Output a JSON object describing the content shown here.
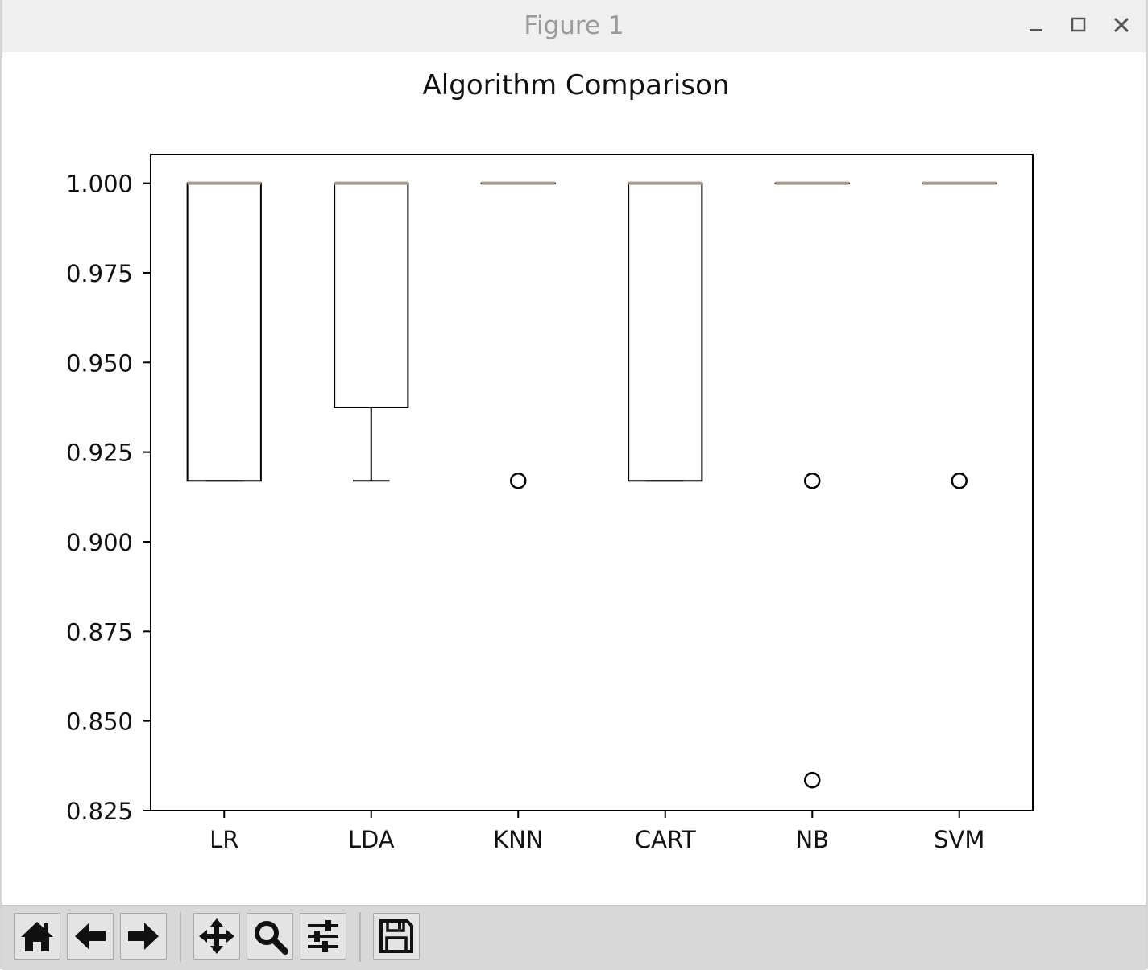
{
  "window": {
    "title": "Figure 1",
    "controls": [
      "minimize-icon",
      "maximize-icon",
      "close-icon"
    ]
  },
  "toolbar": {
    "buttons": [
      {
        "name": "home",
        "icon": "home-icon"
      },
      {
        "name": "back",
        "icon": "arrow-left-icon"
      },
      {
        "name": "forward",
        "icon": "arrow-right-icon"
      },
      {
        "name": "pan",
        "icon": "move-icon"
      },
      {
        "name": "zoom",
        "icon": "magnifier-icon"
      },
      {
        "name": "configure-subplots",
        "icon": "sliders-icon"
      },
      {
        "name": "save",
        "icon": "floppy-disk-icon"
      }
    ]
  },
  "chart_data": {
    "type": "box",
    "title": "Algorithm Comparison",
    "xlabel": "",
    "ylabel": "",
    "categories": [
      "LR",
      "LDA",
      "KNN",
      "CART",
      "NB",
      "SVM"
    ],
    "ylim": [
      0.825,
      1.008
    ],
    "yticks": [
      "0.825",
      "0.850",
      "0.875",
      "0.900",
      "0.925",
      "0.950",
      "0.975",
      "1.000"
    ],
    "boxes": [
      {
        "label": "LR",
        "whislo": 0.917,
        "q1": 0.917,
        "med": 1.0,
        "q3": 1.0,
        "whishi": 1.0,
        "fliers": []
      },
      {
        "label": "LDA",
        "whislo": 0.917,
        "q1": 0.9375,
        "med": 1.0,
        "q3": 1.0,
        "whishi": 1.0,
        "fliers": []
      },
      {
        "label": "KNN",
        "whislo": 1.0,
        "q1": 1.0,
        "med": 1.0,
        "q3": 1.0,
        "whishi": 1.0,
        "fliers": [
          0.917
        ]
      },
      {
        "label": "CART",
        "whislo": 0.917,
        "q1": 0.917,
        "med": 1.0,
        "q3": 1.0,
        "whishi": 1.0,
        "fliers": []
      },
      {
        "label": "NB",
        "whislo": 1.0,
        "q1": 1.0,
        "med": 1.0,
        "q3": 1.0,
        "whishi": 1.0,
        "fliers": [
          0.917,
          0.8335
        ]
      },
      {
        "label": "SVM",
        "whislo": 1.0,
        "q1": 1.0,
        "med": 1.0,
        "q3": 1.0,
        "whishi": 1.0,
        "fliers": [
          0.917
        ]
      }
    ],
    "colors": {
      "box": "#000000",
      "median": "#a89a8c",
      "flier": "#000000",
      "background": "#ffffff"
    },
    "grid": false,
    "legend": "none"
  }
}
